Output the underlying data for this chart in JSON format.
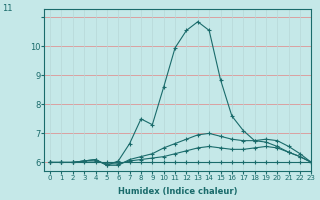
{
  "xlabel": "Humidex (Indice chaleur)",
  "bg_color": "#c5e8e8",
  "line_color": "#1a6b6b",
  "grid_color_h": "#daa0a0",
  "grid_color_v": "#b8d8d8",
  "xlim": [
    -0.5,
    23
  ],
  "ylim": [
    5.7,
    11.3
  ],
  "xticks": [
    0,
    1,
    2,
    3,
    4,
    5,
    6,
    7,
    8,
    9,
    10,
    11,
    12,
    13,
    14,
    15,
    16,
    17,
    18,
    19,
    20,
    21,
    22,
    23
  ],
  "yticks": [
    6,
    7,
    8,
    9,
    10,
    11
  ],
  "ytick_labels": [
    "6",
    "7",
    "8",
    "9",
    "10",
    "11"
  ],
  "series": [
    {
      "x": [
        0,
        1,
        2,
        3,
        4,
        5,
        6,
        7,
        8,
        9,
        10,
        11,
        12,
        13,
        14,
        15,
        16,
        17,
        18,
        19,
        20,
        21,
        22,
        23
      ],
      "y": [
        6.0,
        6.0,
        6.0,
        6.0,
        6.0,
        6.0,
        6.0,
        6.0,
        6.0,
        6.0,
        6.0,
        6.0,
        6.0,
        6.0,
        6.0,
        6.0,
        6.0,
        6.0,
        6.0,
        6.0,
        6.0,
        6.0,
        6.0,
        6.0
      ]
    },
    {
      "x": [
        0,
        1,
        2,
        3,
        4,
        5,
        6,
        7,
        8,
        9,
        10,
        11,
        12,
        13,
        14,
        15,
        16,
        17,
        18,
        19,
        20,
        21,
        22,
        23
      ],
      "y": [
        6.0,
        6.0,
        6.0,
        6.05,
        6.05,
        5.95,
        5.95,
        6.05,
        6.1,
        6.15,
        6.2,
        6.3,
        6.4,
        6.5,
        6.55,
        6.5,
        6.45,
        6.45,
        6.5,
        6.55,
        6.5,
        6.35,
        6.2,
        6.0
      ]
    },
    {
      "x": [
        0,
        1,
        2,
        3,
        4,
        5,
        6,
        7,
        8,
        9,
        10,
        11,
        12,
        13,
        14,
        15,
        16,
        17,
        18,
        19,
        20,
        21,
        22,
        23
      ],
      "y": [
        6.0,
        6.0,
        6.0,
        6.05,
        6.1,
        5.9,
        5.9,
        6.1,
        6.2,
        6.3,
        6.5,
        6.65,
        6.8,
        6.95,
        7.0,
        6.9,
        6.8,
        6.75,
        6.75,
        6.8,
        6.75,
        6.55,
        6.3,
        6.0
      ]
    },
    {
      "x": [
        0,
        1,
        2,
        3,
        4,
        5,
        6,
        7,
        8,
        9,
        10,
        11,
        12,
        13,
        14,
        15,
        16,
        17,
        18,
        19,
        20,
        21,
        22,
        23
      ],
      "y": [
        6.0,
        6.0,
        6.0,
        6.05,
        6.1,
        5.9,
        6.05,
        6.65,
        7.5,
        7.3,
        8.6,
        9.95,
        10.55,
        10.85,
        10.55,
        8.85,
        7.6,
        7.1,
        6.75,
        6.7,
        6.55,
        6.35,
        6.2,
        6.0
      ]
    }
  ],
  "marker": "+",
  "markersize": 3,
  "linewidth": 0.8,
  "tick_fontsize": 5,
  "xlabel_fontsize": 6
}
